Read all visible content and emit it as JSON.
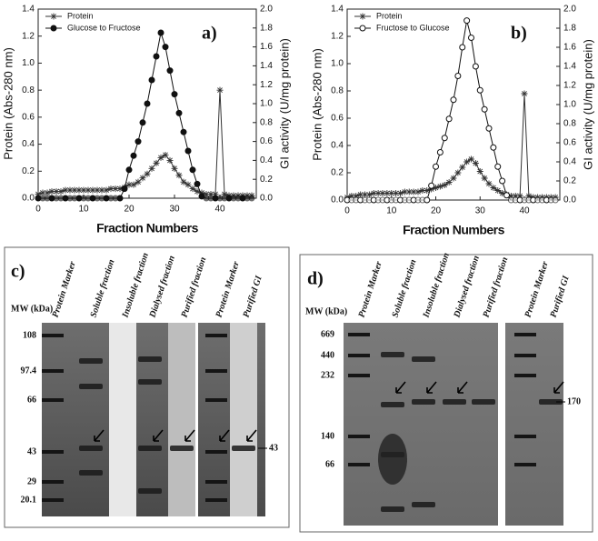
{
  "chart_data": [
    {
      "type": "line",
      "panel_label": "a)",
      "xlabel": "Fraction Numbers",
      "ylabel": "Protein (Abs-280 nm)",
      "y2label": "GI activity (U/mg protein)",
      "legend": "upper left",
      "xlim": [
        0,
        48
      ],
      "xticks": [
        0,
        10,
        20,
        30,
        40
      ],
      "ylim": [
        0,
        1.4
      ],
      "yticks": [
        {
          "value": 0,
          "label": "0.0"
        },
        0.2,
        0.4,
        0.6,
        0.8,
        {
          "value": 1,
          "label": "1.0"
        },
        1.2,
        1.4
      ],
      "y2lim": [
        0,
        2
      ],
      "y2ticks": [
        {
          "value": 0,
          "label": "0.0"
        },
        0.2,
        0.4,
        0.6,
        0.8,
        {
          "value": 1,
          "label": "1.0"
        },
        1.2,
        1.4,
        1.6,
        1.8,
        {
          "value": 2,
          "label": "2.0"
        }
      ],
      "x": [
        0,
        1,
        2,
        3,
        4,
        5,
        6,
        7,
        8,
        9,
        10,
        11,
        12,
        13,
        14,
        15,
        16,
        17,
        18,
        19,
        20,
        21,
        22,
        23,
        24,
        25,
        26,
        27,
        28,
        29,
        30,
        31,
        32,
        33,
        34,
        35,
        36,
        37,
        38,
        39,
        40,
        41,
        42,
        43,
        44,
        45,
        46,
        47
      ],
      "series": [
        {
          "name": "Protein",
          "color": "#333333",
          "marker": "star",
          "values": [
            0.03,
            0.04,
            0.04,
            0.05,
            0.05,
            0.05,
            0.06,
            0.06,
            0.06,
            0.06,
            0.06,
            0.06,
            0.06,
            0.06,
            0.06,
            0.06,
            0.07,
            0.07,
            0.07,
            0.08,
            0.1,
            0.1,
            0.12,
            0.15,
            0.18,
            0.22,
            0.26,
            0.3,
            0.32,
            0.28,
            0.22,
            0.17,
            0.12,
            0.1,
            0.07,
            0.05,
            0.04,
            0.03,
            0.03,
            0.03,
            0.8,
            0.03,
            0.02,
            0.02,
            0.02,
            0.02,
            0.02,
            0.02
          ]
        },
        {
          "name": "Glucose to Fructose",
          "color": "#111111",
          "marker": "filled-circle",
          "axis": "y2",
          "values": [
            0,
            0,
            0,
            0,
            0,
            0,
            0,
            0,
            0,
            0,
            0,
            0,
            0,
            0,
            0,
            0,
            0,
            0,
            0,
            0.1,
            0.3,
            0.45,
            0.6,
            0.8,
            1.0,
            1.25,
            1.5,
            1.75,
            1.6,
            1.35,
            1.1,
            0.9,
            0.7,
            0.5,
            0.3,
            0.15,
            0.02,
            0,
            0,
            0,
            0,
            0,
            0,
            0,
            0,
            0,
            0,
            0
          ]
        }
      ]
    },
    {
      "type": "line",
      "panel_label": "b)",
      "xlabel": "Fraction Numbers",
      "ylabel": "Protein (Abs-280 nm)",
      "y2label": "GI activity (U/mg protein)",
      "legend": "upper left",
      "xlim": [
        0,
        48
      ],
      "xticks": [
        0,
        10,
        20,
        30,
        40
      ],
      "ylim": [
        0,
        1.4
      ],
      "yticks": [
        {
          "value": 0,
          "label": "0.0"
        },
        0.2,
        0.4,
        0.6,
        0.8,
        {
          "value": 1,
          "label": "1.0"
        },
        1.2,
        1.4
      ],
      "y2lim": [
        0,
        2
      ],
      "y2ticks": [
        {
          "value": 0,
          "label": "0.0"
        },
        0.2,
        0.4,
        0.6,
        0.8,
        {
          "value": 1,
          "label": "1.0"
        },
        1.2,
        1.4,
        1.6,
        1.8,
        {
          "value": 2,
          "label": "2.0"
        }
      ],
      "x": [
        0,
        1,
        2,
        3,
        4,
        5,
        6,
        7,
        8,
        9,
        10,
        11,
        12,
        13,
        14,
        15,
        16,
        17,
        18,
        19,
        20,
        21,
        22,
        23,
        24,
        25,
        26,
        27,
        28,
        29,
        30,
        31,
        32,
        33,
        34,
        35,
        36,
        37,
        38,
        39,
        40,
        41,
        42,
        43,
        44,
        45,
        46,
        47
      ],
      "series": [
        {
          "name": "Protein",
          "color": "#333333",
          "marker": "star",
          "values": [
            0.02,
            0.03,
            0.03,
            0.04,
            0.04,
            0.04,
            0.05,
            0.05,
            0.05,
            0.05,
            0.05,
            0.05,
            0.05,
            0.06,
            0.06,
            0.06,
            0.06,
            0.07,
            0.07,
            0.08,
            0.09,
            0.1,
            0.11,
            0.13,
            0.16,
            0.2,
            0.24,
            0.28,
            0.3,
            0.27,
            0.21,
            0.16,
            0.12,
            0.09,
            0.07,
            0.05,
            0.04,
            0.03,
            0.03,
            0.03,
            0.78,
            0.03,
            0.02,
            0.02,
            0.02,
            0.02,
            0.02,
            0.02
          ]
        },
        {
          "name": "Fructose to Glucose",
          "color": "#111111",
          "marker": "open-circle",
          "axis": "y2",
          "values": [
            0,
            0,
            0,
            0,
            0,
            0,
            0,
            0,
            0,
            0,
            0,
            0,
            0,
            0,
            0,
            0,
            0,
            0,
            0,
            0.15,
            0.35,
            0.5,
            0.65,
            0.85,
            1.05,
            1.3,
            1.6,
            1.88,
            1.7,
            1.4,
            1.15,
            0.95,
            0.75,
            0.55,
            0.35,
            0.2,
            0.05,
            0,
            0,
            0,
            0,
            0,
            0,
            0,
            0,
            0,
            0,
            0
          ]
        }
      ]
    }
  ],
  "gels": [
    {
      "panel_label": "c)",
      "mw_axis_label": "MW (kDa)",
      "lanes": [
        "Protein Marker",
        "Soluble fraction",
        "Insoluble fraction",
        "Dialysed fraction",
        "Purified fraction",
        "Protein Marker",
        "Purified GI"
      ],
      "mw_markers": [
        "108",
        "97.4",
        "66",
        "43",
        "29",
        "20.1"
      ],
      "band_label": "43"
    },
    {
      "panel_label": "d)",
      "mw_axis_label": "MW (kDa)",
      "lanes": [
        "Protein Marker",
        "Soluble fraction",
        "Insoluble fraction",
        "Dialysed fraction",
        "Purified fraction",
        "Protein Marker",
        "Purified GI"
      ],
      "mw_markers": [
        "669",
        "440",
        "232",
        "140",
        "66"
      ],
      "band_label": "170"
    }
  ]
}
